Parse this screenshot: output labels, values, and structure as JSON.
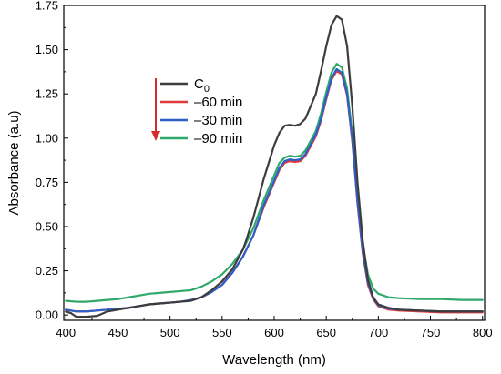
{
  "chart_data": {
    "type": "line",
    "xlabel": "Wavelength (nm)",
    "ylabel": "Absorbance (a.u)",
    "xlim": [
      398,
      802
    ],
    "ylim": [
      -0.03,
      1.75
    ],
    "xticks": [
      "400",
      "450",
      "500",
      "550",
      "600",
      "650",
      "700",
      "750",
      "800"
    ],
    "yticks": [
      "0.00",
      "0.25",
      "0.50",
      "0.75",
      "1.00",
      "1.25",
      "1.50",
      "1.75"
    ],
    "legend_position": "upper-left",
    "legend_arrow_color": "#d62c2c",
    "series": [
      {
        "name": "C",
        "name_sub": "0",
        "color": "#3d3d3d",
        "points": [
          [
            400,
            0.02
          ],
          [
            405,
            0.01
          ],
          [
            410,
            -0.01
          ],
          [
            420,
            -0.01
          ],
          [
            430,
            -0.005
          ],
          [
            440,
            0.02
          ],
          [
            450,
            0.03
          ],
          [
            460,
            0.04
          ],
          [
            470,
            0.05
          ],
          [
            480,
            0.06
          ],
          [
            490,
            0.065
          ],
          [
            500,
            0.07
          ],
          [
            510,
            0.075
          ],
          [
            520,
            0.08
          ],
          [
            530,
            0.1
          ],
          [
            540,
            0.14
          ],
          [
            550,
            0.19
          ],
          [
            560,
            0.26
          ],
          [
            570,
            0.37
          ],
          [
            573,
            0.42
          ],
          [
            580,
            0.55
          ],
          [
            590,
            0.77
          ],
          [
            600,
            0.96
          ],
          [
            605,
            1.03
          ],
          [
            610,
            1.07
          ],
          [
            615,
            1.075
          ],
          [
            620,
            1.07
          ],
          [
            625,
            1.08
          ],
          [
            630,
            1.11
          ],
          [
            640,
            1.25
          ],
          [
            645,
            1.38
          ],
          [
            650,
            1.52
          ],
          [
            655,
            1.64
          ],
          [
            660,
            1.69
          ],
          [
            665,
            1.67
          ],
          [
            670,
            1.52
          ],
          [
            675,
            1.18
          ],
          [
            680,
            0.75
          ],
          [
            685,
            0.42
          ],
          [
            690,
            0.2
          ],
          [
            695,
            0.1
          ],
          [
            700,
            0.06
          ],
          [
            710,
            0.04
          ],
          [
            720,
            0.03
          ],
          [
            740,
            0.025
          ],
          [
            760,
            0.02
          ],
          [
            780,
            0.02
          ],
          [
            800,
            0.02
          ]
        ]
      },
      {
        "name": "–60 min",
        "color": "#e03a3a",
        "points": [
          [
            400,
            0.03
          ],
          [
            410,
            0.02
          ],
          [
            420,
            0.02
          ],
          [
            430,
            0.025
          ],
          [
            440,
            0.03
          ],
          [
            450,
            0.035
          ],
          [
            460,
            0.04
          ],
          [
            470,
            0.05
          ],
          [
            480,
            0.06
          ],
          [
            490,
            0.065
          ],
          [
            500,
            0.07
          ],
          [
            510,
            0.075
          ],
          [
            520,
            0.085
          ],
          [
            530,
            0.1
          ],
          [
            540,
            0.13
          ],
          [
            550,
            0.17
          ],
          [
            560,
            0.24
          ],
          [
            570,
            0.33
          ],
          [
            580,
            0.45
          ],
          [
            590,
            0.61
          ],
          [
            600,
            0.75
          ],
          [
            605,
            0.82
          ],
          [
            610,
            0.86
          ],
          [
            615,
            0.87
          ],
          [
            620,
            0.865
          ],
          [
            625,
            0.87
          ],
          [
            630,
            0.9
          ],
          [
            640,
            1.01
          ],
          [
            645,
            1.1
          ],
          [
            650,
            1.22
          ],
          [
            655,
            1.33
          ],
          [
            660,
            1.38
          ],
          [
            665,
            1.36
          ],
          [
            670,
            1.24
          ],
          [
            675,
            0.98
          ],
          [
            680,
            0.63
          ],
          [
            685,
            0.35
          ],
          [
            690,
            0.17
          ],
          [
            695,
            0.09
          ],
          [
            700,
            0.05
          ],
          [
            710,
            0.03
          ],
          [
            720,
            0.025
          ],
          [
            740,
            0.02
          ],
          [
            760,
            0.015
          ],
          [
            780,
            0.015
          ],
          [
            800,
            0.015
          ]
        ]
      },
      {
        "name": "–30 min",
        "color": "#2c5fc8",
        "points": [
          [
            400,
            0.03
          ],
          [
            410,
            0.02
          ],
          [
            420,
            0.02
          ],
          [
            430,
            0.025
          ],
          [
            440,
            0.03
          ],
          [
            450,
            0.035
          ],
          [
            460,
            0.04
          ],
          [
            470,
            0.05
          ],
          [
            480,
            0.06
          ],
          [
            490,
            0.065
          ],
          [
            500,
            0.07
          ],
          [
            510,
            0.075
          ],
          [
            520,
            0.085
          ],
          [
            530,
            0.1
          ],
          [
            540,
            0.13
          ],
          [
            550,
            0.17
          ],
          [
            560,
            0.24
          ],
          [
            570,
            0.33
          ],
          [
            580,
            0.45
          ],
          [
            590,
            0.62
          ],
          [
            600,
            0.76
          ],
          [
            605,
            0.83
          ],
          [
            610,
            0.87
          ],
          [
            615,
            0.88
          ],
          [
            620,
            0.875
          ],
          [
            625,
            0.88
          ],
          [
            630,
            0.91
          ],
          [
            640,
            1.02
          ],
          [
            645,
            1.11
          ],
          [
            650,
            1.23
          ],
          [
            655,
            1.34
          ],
          [
            660,
            1.39
          ],
          [
            665,
            1.37
          ],
          [
            670,
            1.25
          ],
          [
            675,
            0.99
          ],
          [
            680,
            0.64
          ],
          [
            685,
            0.36
          ],
          [
            690,
            0.18
          ],
          [
            695,
            0.095
          ],
          [
            700,
            0.055
          ],
          [
            710,
            0.035
          ],
          [
            720,
            0.03
          ],
          [
            740,
            0.025
          ],
          [
            760,
            0.02
          ],
          [
            780,
            0.02
          ],
          [
            800,
            0.02
          ]
        ]
      },
      {
        "name": "–90 min",
        "color": "#2fa86b",
        "points": [
          [
            400,
            0.08
          ],
          [
            410,
            0.075
          ],
          [
            420,
            0.075
          ],
          [
            430,
            0.08
          ],
          [
            440,
            0.085
          ],
          [
            450,
            0.09
          ],
          [
            460,
            0.1
          ],
          [
            470,
            0.11
          ],
          [
            480,
            0.12
          ],
          [
            490,
            0.125
          ],
          [
            500,
            0.13
          ],
          [
            510,
            0.135
          ],
          [
            520,
            0.14
          ],
          [
            530,
            0.16
          ],
          [
            540,
            0.19
          ],
          [
            550,
            0.23
          ],
          [
            560,
            0.29
          ],
          [
            570,
            0.37
          ],
          [
            580,
            0.49
          ],
          [
            590,
            0.65
          ],
          [
            600,
            0.79
          ],
          [
            605,
            0.86
          ],
          [
            610,
            0.89
          ],
          [
            615,
            0.9
          ],
          [
            620,
            0.895
          ],
          [
            625,
            0.9
          ],
          [
            630,
            0.93
          ],
          [
            640,
            1.04
          ],
          [
            645,
            1.14
          ],
          [
            650,
            1.26
          ],
          [
            655,
            1.37
          ],
          [
            660,
            1.42
          ],
          [
            665,
            1.4
          ],
          [
            670,
            1.28
          ],
          [
            675,
            1.02
          ],
          [
            680,
            0.68
          ],
          [
            685,
            0.4
          ],
          [
            690,
            0.23
          ],
          [
            695,
            0.15
          ],
          [
            700,
            0.12
          ],
          [
            710,
            0.1
          ],
          [
            720,
            0.095
          ],
          [
            740,
            0.09
          ],
          [
            760,
            0.09
          ],
          [
            780,
            0.085
          ],
          [
            800,
            0.085
          ]
        ]
      }
    ]
  }
}
